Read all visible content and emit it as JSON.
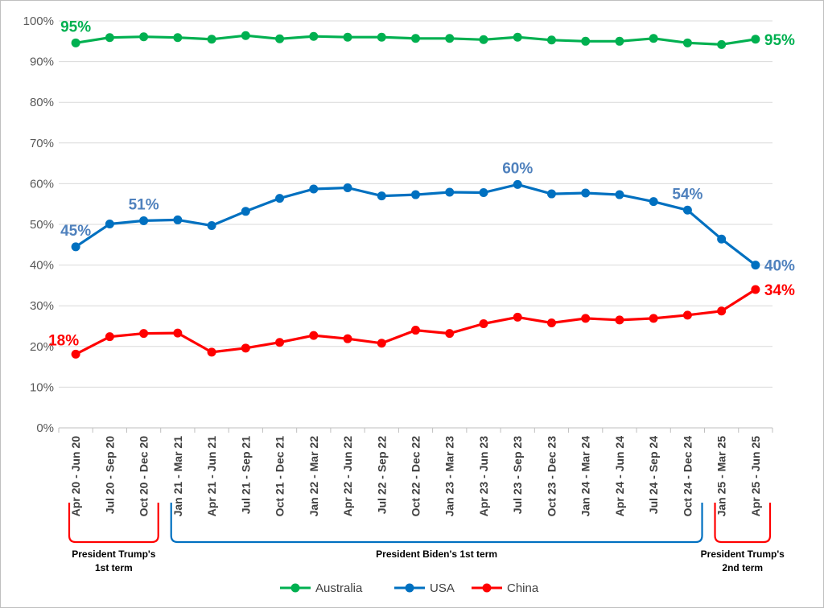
{
  "chart_data": {
    "type": "line",
    "title": "",
    "xlabel": "",
    "ylabel": "",
    "ylim": [
      0,
      100
    ],
    "y_ticks": [
      "0%",
      "10%",
      "20%",
      "30%",
      "40%",
      "50%",
      "60%",
      "70%",
      "80%",
      "90%",
      "100%"
    ],
    "grid": "horizontal",
    "legend_position": "bottom",
    "categories": [
      "Apr 20 - Jun 20",
      "Jul 20 - Sep 20",
      "Oct 20 - Dec 20",
      "Jan 21 - Mar 21",
      "Apr 21 - Jun 21",
      "Jul 21 - Sep 21",
      "Oct 21 - Dec 21",
      "Jan 22 - Mar 22",
      "Apr 22 - Jun 22",
      "Jul 22 - Sep 22",
      "Oct 22 - Dec 22",
      "Jan 23 - Mar 23",
      "Apr 23 - Jun 23",
      "Jul 23 - Sep 23",
      "Oct 23 - Dec 23",
      "Jan 24 - Mar 24",
      "Apr 24 - Jun 24",
      "Jul 24 - Sep 24",
      "Oct 24 - Dec 24",
      "Jan 25 - Mar 25",
      "Apr 25 - Jun 25"
    ],
    "series": [
      {
        "name": "Australia",
        "color": "#00b050",
        "values": [
          94.6,
          95.9,
          96.1,
          95.9,
          95.5,
          96.4,
          95.6,
          96.2,
          96.0,
          96.0,
          95.7,
          95.7,
          95.4,
          96.0,
          95.3,
          95.0,
          95.0,
          95.7,
          94.6,
          94.2,
          95.5
        ],
        "labels": [
          {
            "index": 0,
            "text": "95%",
            "pos": "above"
          },
          {
            "index": 20,
            "text": "95%",
            "pos": "right"
          }
        ]
      },
      {
        "name": "USA",
        "color": "#0070c0",
        "label_color": "#4f81bd",
        "values": [
          44.5,
          50.1,
          50.9,
          51.1,
          49.7,
          53.2,
          56.4,
          58.7,
          59.0,
          57.0,
          57.3,
          57.9,
          57.8,
          59.8,
          57.5,
          57.7,
          57.3,
          55.6,
          53.5,
          46.4,
          40.0
        ],
        "labels": [
          {
            "index": 0,
            "text": "45%",
            "pos": "above"
          },
          {
            "index": 2,
            "text": "51%",
            "pos": "above"
          },
          {
            "index": 13,
            "text": "60%",
            "pos": "above"
          },
          {
            "index": 18,
            "text": "54%",
            "pos": "above"
          },
          {
            "index": 20,
            "text": "40%",
            "pos": "right"
          }
        ]
      },
      {
        "name": "China",
        "color": "#ff0000",
        "values": [
          18.1,
          22.4,
          23.2,
          23.3,
          18.6,
          19.6,
          21.0,
          22.7,
          21.9,
          20.8,
          24.0,
          23.2,
          25.6,
          27.2,
          25.8,
          26.9,
          26.5,
          26.9,
          27.7,
          28.7,
          34.0
        ],
        "labels": [
          {
            "index": 0,
            "text": "18%",
            "pos": "left-above"
          },
          {
            "index": 20,
            "text": "34%",
            "pos": "right"
          }
        ]
      }
    ],
    "annotations": [
      {
        "name": "trump-first-term",
        "line1": "President Trump's",
        "line2": "1st term",
        "from": 0,
        "to": 2,
        "color": "#ff0000"
      },
      {
        "name": "biden-first-term",
        "line1": "President Biden's 1st term",
        "line2": "",
        "from": 3,
        "to": 18,
        "color": "#0070c0"
      },
      {
        "name": "trump-second-term",
        "line1": "President Trump's",
        "line2": "2nd term",
        "from": 19,
        "to": 20,
        "color": "#ff0000"
      }
    ]
  }
}
